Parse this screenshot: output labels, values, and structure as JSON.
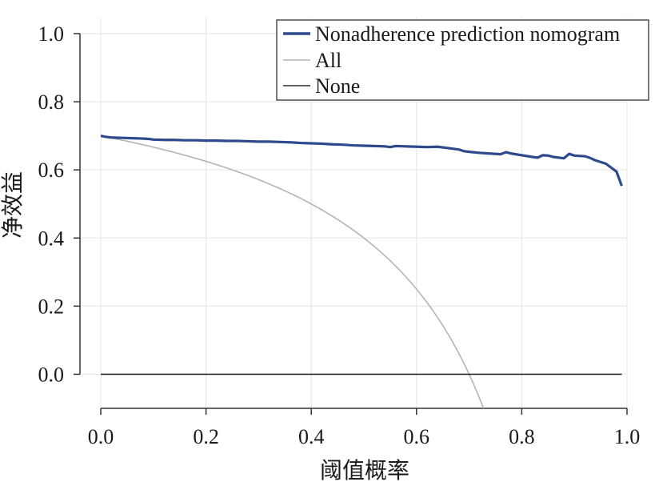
{
  "chart_data": {
    "type": "line",
    "title": "",
    "xlabel": "阈值概率",
    "ylabel": "净效益",
    "xlim": [
      0.0,
      1.0
    ],
    "ylim": [
      -0.1,
      1.0
    ],
    "xticks": [
      0.0,
      0.2,
      0.4,
      0.6,
      0.8,
      1.0
    ],
    "xtick_labels": [
      "0.0",
      "0.2",
      "0.4",
      "0.6",
      "0.8",
      "1.0"
    ],
    "yticks": [
      0.0,
      0.2,
      0.4,
      0.6,
      0.8,
      1.0
    ],
    "ytick_labels": [
      "0.0",
      "0.2",
      "0.4",
      "0.6",
      "0.8",
      "1.0"
    ],
    "grid": true,
    "legend_position": "top-right",
    "prevalence": 0.7,
    "series": [
      {
        "name": "Nonadherence prediction nomogram",
        "color": "#2e4a8c",
        "x": [
          0.0,
          0.01,
          0.02,
          0.04,
          0.06,
          0.08,
          0.09,
          0.1,
          0.12,
          0.14,
          0.16,
          0.18,
          0.2,
          0.22,
          0.24,
          0.26,
          0.28,
          0.3,
          0.32,
          0.34,
          0.36,
          0.38,
          0.4,
          0.42,
          0.43,
          0.44,
          0.46,
          0.48,
          0.5,
          0.52,
          0.54,
          0.55,
          0.56,
          0.58,
          0.6,
          0.62,
          0.64,
          0.66,
          0.68,
          0.69,
          0.7,
          0.72,
          0.74,
          0.76,
          0.77,
          0.78,
          0.8,
          0.82,
          0.83,
          0.84,
          0.85,
          0.86,
          0.88,
          0.89,
          0.9,
          0.92,
          0.93,
          0.94,
          0.96,
          0.98,
          0.99
        ],
        "y": [
          0.7,
          0.697,
          0.695,
          0.694,
          0.693,
          0.692,
          0.691,
          0.689,
          0.688,
          0.688,
          0.687,
          0.687,
          0.686,
          0.686,
          0.685,
          0.685,
          0.684,
          0.683,
          0.683,
          0.682,
          0.681,
          0.679,
          0.678,
          0.677,
          0.676,
          0.675,
          0.674,
          0.672,
          0.671,
          0.67,
          0.669,
          0.667,
          0.67,
          0.669,
          0.668,
          0.667,
          0.668,
          0.664,
          0.66,
          0.655,
          0.653,
          0.65,
          0.648,
          0.646,
          0.652,
          0.648,
          0.643,
          0.638,
          0.636,
          0.643,
          0.642,
          0.638,
          0.634,
          0.647,
          0.642,
          0.64,
          0.635,
          0.628,
          0.618,
          0.595,
          0.553
        ]
      },
      {
        "name": "All",
        "color": "#b4b4b4"
      },
      {
        "name": "None",
        "color": "#2b2b2b",
        "x": [
          0.0,
          0.99
        ],
        "y": [
          0.0,
          0.0
        ]
      }
    ]
  }
}
